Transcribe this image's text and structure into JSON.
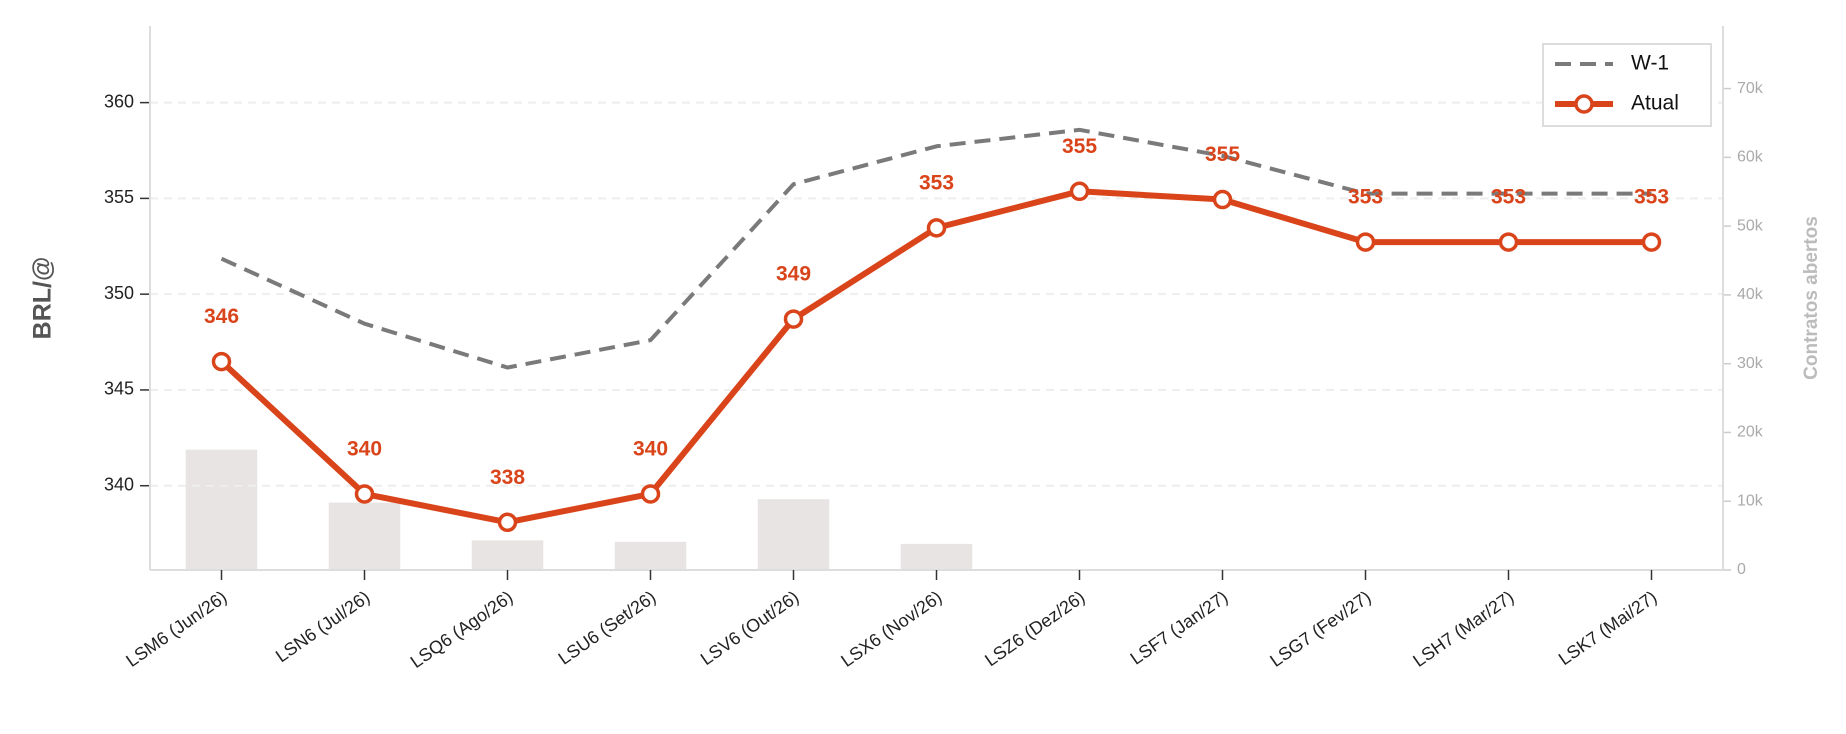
{
  "chart_data": {
    "type": "line",
    "categories": [
      "LSM6 (Jun/26)",
      "LSN6 (Jul/26)",
      "LSQ6 (Ago/26)",
      "LSU6 (Set/26)",
      "LSV6 (Out/26)",
      "LSX6 (Nov/26)",
      "LSZ6 (Dez/26)",
      "LSF7 (Jan/27)",
      "LSG7 (Fev/27)",
      "LSH7 (Mar/27)",
      "LSK7 (Mai/27)"
    ],
    "series": [
      {
        "name": "W-1",
        "color": "#7a7a7a",
        "dashed": true,
        "values": [
          351.85,
          348.46,
          346.17,
          347.6,
          355.74,
          357.72,
          358.58,
          357.22,
          355.25,
          355.25,
          355.25
        ]
      },
      {
        "name": "Atual",
        "color": "#d9441a",
        "markers": true,
        "values": [
          346.48,
          339.57,
          338.09,
          339.57,
          348.7,
          353.46,
          355.37,
          354.94,
          352.72,
          352.72,
          352.72
        ],
        "value_labels": [
          "346",
          "340",
          "338",
          "340",
          "349",
          "353",
          "355",
          "355",
          "353",
          "353",
          "353"
        ]
      }
    ],
    "open_interest": {
      "axis": "y2",
      "color": "#e8e4e3",
      "values": [
        17500,
        9800,
        4300,
        4100,
        10300,
        3800,
        0,
        0,
        0,
        0,
        0
      ]
    },
    "ylabel": "BRL/@",
    "y2label": "Contratos abertos",
    "ylim": [
      335.6,
      364
    ],
    "yticks": [
      340,
      345,
      350,
      355,
      360
    ],
    "y2lim": [
      0,
      79100
    ],
    "y2ticks": [
      0,
      {
        "value": 10000,
        "label": "10k"
      },
      {
        "value": 20000,
        "label": "20k"
      },
      {
        "value": 30000,
        "label": "30k"
      },
      {
        "value": 40000,
        "label": "40k"
      },
      {
        "value": 50000,
        "label": "50k"
      },
      {
        "value": 60000,
        "label": "60k"
      },
      {
        "value": 70000,
        "label": "70k"
      }
    ],
    "grid": true,
    "legend": "upper right"
  }
}
